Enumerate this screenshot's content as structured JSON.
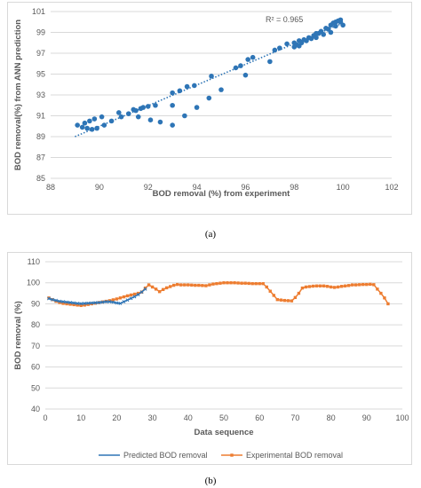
{
  "captions": {
    "a": "(a)",
    "b": "(b)"
  },
  "chart_data": [
    {
      "type": "scatter",
      "xlabel": "BOD removal (%) from experiment",
      "ylabel": "BOD removal(%) from ANN prediction",
      "xlim": [
        88,
        102
      ],
      "ylim": [
        85,
        101
      ],
      "xticks": [
        88,
        90,
        92,
        94,
        96,
        98,
        100,
        102
      ],
      "yticks": [
        85,
        87,
        89,
        91,
        93,
        95,
        97,
        99,
        101
      ],
      "annotation": "R² = 0.965",
      "color": "#2e75b6",
      "trendline": {
        "x": [
          89,
          99.9
        ],
        "y": [
          89.0,
          99.8
        ]
      },
      "points": [
        [
          89.1,
          90.1
        ],
        [
          89.3,
          89.9
        ],
        [
          89.4,
          90.3
        ],
        [
          89.5,
          89.8
        ],
        [
          89.6,
          90.5
        ],
        [
          89.7,
          89.7
        ],
        [
          89.8,
          90.7
        ],
        [
          89.9,
          89.8
        ],
        [
          90.1,
          90.9
        ],
        [
          90.2,
          90.1
        ],
        [
          90.5,
          90.5
        ],
        [
          90.8,
          91.3
        ],
        [
          90.9,
          90.9
        ],
        [
          91.2,
          91.2
        ],
        [
          91.4,
          91.6
        ],
        [
          91.5,
          91.5
        ],
        [
          91.6,
          90.9
        ],
        [
          91.7,
          91.7
        ],
        [
          91.8,
          91.8
        ],
        [
          92.0,
          91.9
        ],
        [
          92.1,
          90.6
        ],
        [
          92.3,
          92.0
        ],
        [
          92.5,
          90.4
        ],
        [
          93.0,
          90.1
        ],
        [
          93.0,
          92.0
        ],
        [
          93.0,
          93.2
        ],
        [
          93.3,
          93.4
        ],
        [
          93.5,
          91.0
        ],
        [
          93.6,
          93.8
        ],
        [
          93.9,
          93.9
        ],
        [
          94.0,
          91.8
        ],
        [
          94.5,
          92.7
        ],
        [
          94.6,
          94.8
        ],
        [
          95.0,
          93.5
        ],
        [
          95.6,
          95.6
        ],
        [
          95.8,
          95.8
        ],
        [
          96.0,
          94.9
        ],
        [
          96.1,
          96.4
        ],
        [
          96.3,
          96.6
        ],
        [
          97.0,
          96.2
        ],
        [
          97.2,
          97.3
        ],
        [
          97.4,
          97.5
        ],
        [
          97.7,
          97.9
        ],
        [
          98.0,
          97.6
        ],
        [
          98.0,
          98.0
        ],
        [
          98.1,
          97.8
        ],
        [
          98.2,
          98.2
        ],
        [
          98.3,
          98.0
        ],
        [
          98.4,
          98.3
        ],
        [
          98.5,
          98.2
        ],
        [
          98.6,
          98.5
        ],
        [
          98.7,
          98.4
        ],
        [
          98.8,
          98.7
        ],
        [
          98.9,
          98.5
        ],
        [
          99.0,
          98.9
        ],
        [
          99.1,
          99.1
        ],
        [
          99.2,
          98.8
        ],
        [
          99.3,
          99.4
        ],
        [
          99.4,
          99.3
        ],
        [
          99.5,
          99.7
        ],
        [
          99.6,
          99.9
        ],
        [
          99.7,
          100.0
        ],
        [
          99.8,
          100.1
        ],
        [
          99.9,
          100.2
        ],
        [
          100.0,
          99.7
        ],
        [
          99.5,
          99.0
        ],
        [
          99.7,
          99.6
        ],
        [
          99.9,
          100.0
        ],
        [
          98.9,
          98.9
        ],
        [
          98.2,
          97.7
        ]
      ]
    },
    {
      "type": "line",
      "xlabel": "Data sequence",
      "ylabel": "BOD removal (%)",
      "xlim": [
        0,
        100
      ],
      "ylim": [
        40,
        110
      ],
      "xticks": [
        0,
        10,
        20,
        30,
        40,
        50,
        60,
        70,
        80,
        90,
        100
      ],
      "yticks": [
        40,
        50,
        60,
        70,
        80,
        90,
        100,
        110
      ],
      "legend_position": "bottom",
      "series": [
        {
          "name": "Predicted BOD removal",
          "color": "#2e75b6",
          "marker": "x",
          "x": [
            1,
            2,
            3,
            4,
            5,
            6,
            7,
            8,
            9,
            10,
            11,
            12,
            13,
            14,
            15,
            16,
            17,
            18,
            19,
            20,
            21,
            22,
            23,
            24,
            25,
            26,
            27,
            28
          ],
          "y": [
            92.5,
            92.0,
            91.6,
            91.2,
            91.0,
            90.8,
            90.6,
            90.4,
            90.2,
            90.1,
            90.2,
            90.3,
            90.4,
            90.5,
            90.6,
            90.8,
            91.0,
            91.0,
            90.8,
            90.4,
            90.2,
            91.0,
            91.8,
            92.6,
            93.4,
            94.4,
            95.6,
            97.0
          ]
        },
        {
          "name": "Experimental BOD removal",
          "color": "#ed7d31",
          "marker": "square",
          "x": [
            1,
            2,
            3,
            4,
            5,
            6,
            7,
            8,
            9,
            10,
            11,
            12,
            13,
            14,
            15,
            16,
            17,
            18,
            19,
            20,
            21,
            22,
            23,
            24,
            25,
            26,
            27,
            28,
            29,
            30,
            31,
            32,
            33,
            34,
            35,
            36,
            37,
            38,
            39,
            40,
            41,
            42,
            43,
            44,
            45,
            46,
            47,
            48,
            49,
            50,
            51,
            52,
            53,
            54,
            55,
            56,
            57,
            58,
            59,
            60,
            61,
            62,
            63,
            64,
            65,
            66,
            67,
            68,
            69,
            70,
            71,
            72,
            73,
            74,
            75,
            76,
            77,
            78,
            79,
            80,
            81,
            82,
            83,
            84,
            85,
            86,
            87,
            88,
            89,
            90,
            91,
            92,
            93,
            94,
            95,
            96
          ],
          "y": [
            92.8,
            92.0,
            91.2,
            90.6,
            90.2,
            90.0,
            89.8,
            89.6,
            89.4,
            89.2,
            89.4,
            89.7,
            90.0,
            90.3,
            90.6,
            90.9,
            91.2,
            91.5,
            91.9,
            92.3,
            92.8,
            93.3,
            93.8,
            94.2,
            94.6,
            95.0,
            95.6,
            97.5,
            99.0,
            98.0,
            97.0,
            95.8,
            96.8,
            97.6,
            98.2,
            98.8,
            99.2,
            99.0,
            99.0,
            99.0,
            98.9,
            98.8,
            98.8,
            98.7,
            98.6,
            99.0,
            99.4,
            99.6,
            99.8,
            100.0,
            100.0,
            100.0,
            100.0,
            99.9,
            99.8,
            99.8,
            99.7,
            99.6,
            99.6,
            99.6,
            99.6,
            98.0,
            96.0,
            94.0,
            92.0,
            91.8,
            91.6,
            91.5,
            91.4,
            93.0,
            95.0,
            97.5,
            98.0,
            98.2,
            98.4,
            98.5,
            98.5,
            98.5,
            98.3,
            98.0,
            97.8,
            98.0,
            98.3,
            98.5,
            98.7,
            99.0,
            99.0,
            99.1,
            99.2,
            99.2,
            99.3,
            99.1,
            97.0,
            95.0,
            92.8,
            90.0
          ]
        }
      ]
    }
  ]
}
